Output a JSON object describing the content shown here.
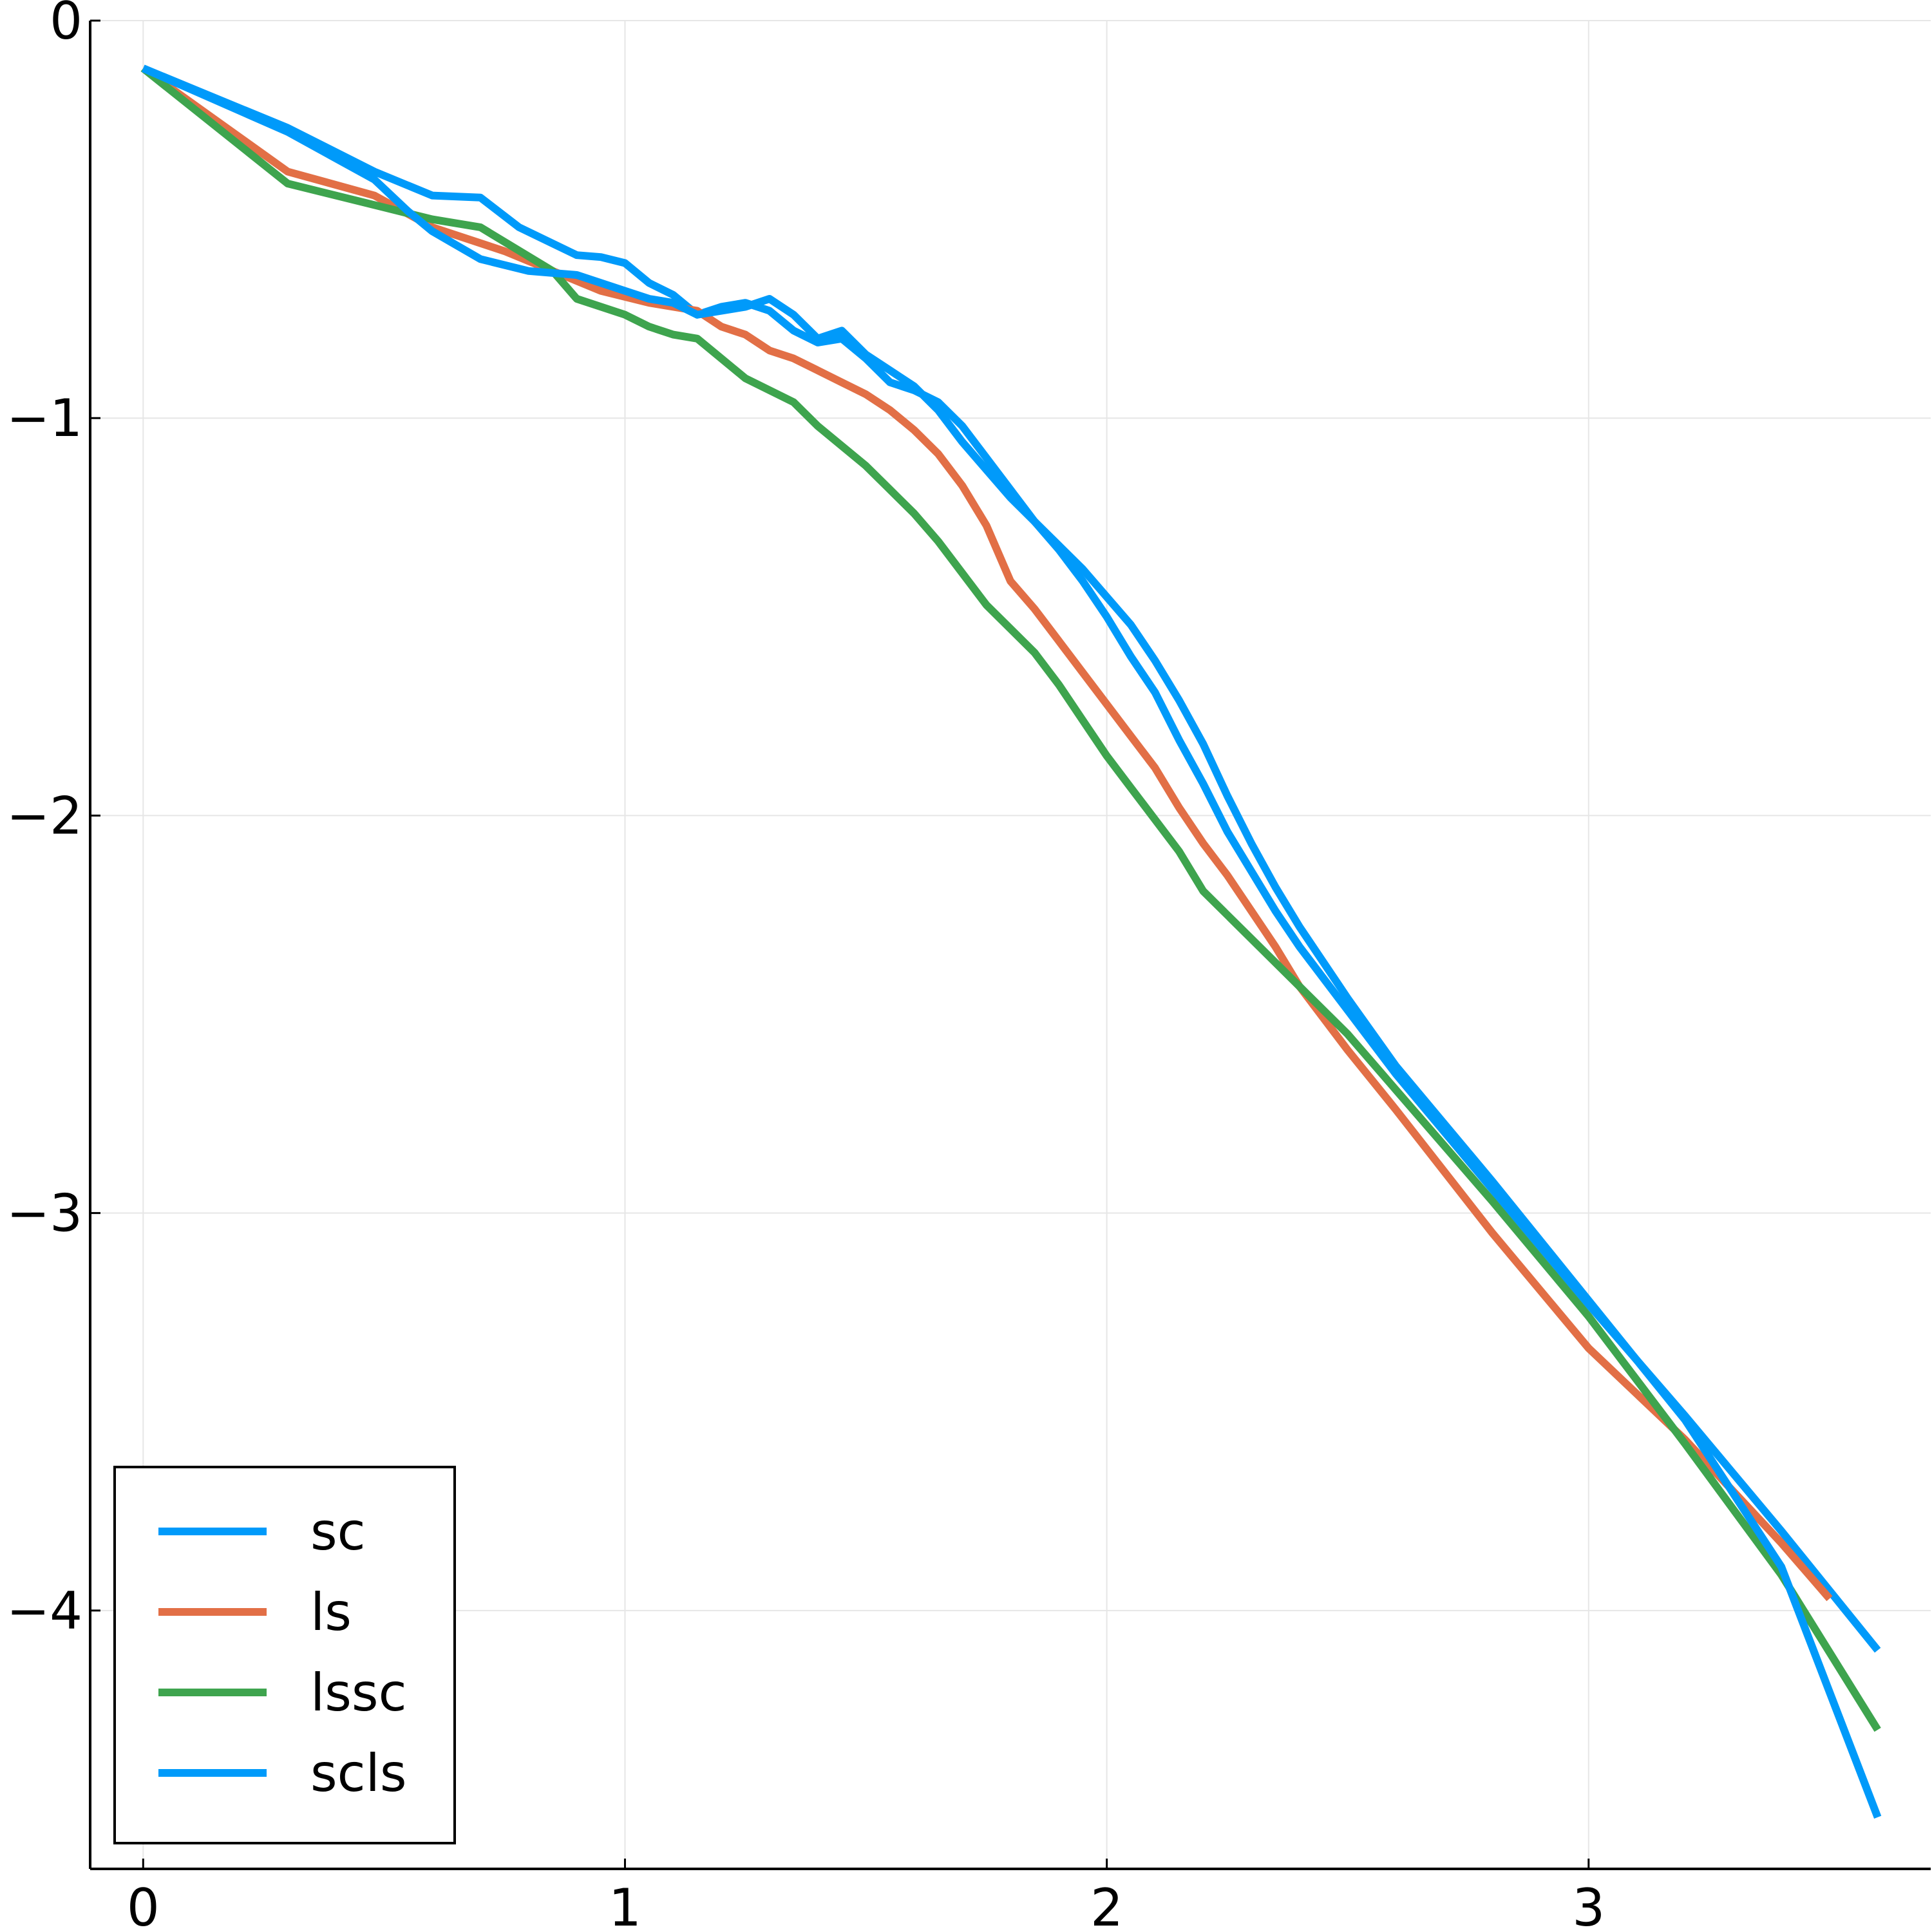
{
  "chart_data": {
    "type": "line",
    "title": "",
    "xlabel": "",
    "ylabel": "",
    "xlim": [
      -0.11,
      3.71
    ],
    "ylim": [
      -4.65,
      0.0
    ],
    "xticks": [
      {
        "value": 0,
        "label": "0"
      },
      {
        "value": 1,
        "label": "1"
      },
      {
        "value": 2,
        "label": "2"
      },
      {
        "value": 3,
        "label": "3"
      }
    ],
    "yticks": [
      {
        "value": 0,
        "label": "0"
      },
      {
        "value": -1,
        "label": "−1"
      },
      {
        "value": -2,
        "label": "−2"
      },
      {
        "value": -3,
        "label": "−3"
      },
      {
        "value": -4,
        "label": "−4"
      }
    ],
    "grid": true,
    "legend_position": "bottom-left",
    "series": [
      {
        "name": "sc",
        "color": "#009AFA",
        "points": [
          [
            0.0,
            -0.12
          ],
          [
            0.3,
            -0.27
          ],
          [
            0.48,
            -0.38
          ],
          [
            0.6,
            -0.44
          ],
          [
            0.7,
            -0.445
          ],
          [
            0.78,
            -0.52
          ],
          [
            0.9,
            -0.59
          ],
          [
            0.95,
            -0.595
          ],
          [
            1.0,
            -0.61
          ],
          [
            1.05,
            -0.66
          ],
          [
            1.1,
            -0.69
          ],
          [
            1.15,
            -0.74
          ],
          [
            1.2,
            -0.72
          ],
          [
            1.25,
            -0.71
          ],
          [
            1.3,
            -0.73
          ],
          [
            1.35,
            -0.78
          ],
          [
            1.4,
            -0.81
          ],
          [
            1.45,
            -0.8
          ],
          [
            1.5,
            -0.85
          ],
          [
            1.55,
            -0.91
          ],
          [
            1.6,
            -0.93
          ],
          [
            1.65,
            -0.96
          ],
          [
            1.7,
            -1.02
          ],
          [
            1.75,
            -1.1
          ],
          [
            1.8,
            -1.18
          ],
          [
            1.85,
            -1.26
          ],
          [
            1.9,
            -1.33
          ],
          [
            1.95,
            -1.41
          ],
          [
            2.0,
            -1.5
          ],
          [
            2.05,
            -1.6
          ],
          [
            2.1,
            -1.69
          ],
          [
            2.15,
            -1.81
          ],
          [
            2.2,
            -1.92
          ],
          [
            2.25,
            -2.04
          ],
          [
            2.3,
            -2.14
          ],
          [
            2.35,
            -2.24
          ],
          [
            2.4,
            -2.33
          ],
          [
            2.5,
            -2.49
          ],
          [
            2.6,
            -2.65
          ],
          [
            2.8,
            -2.94
          ],
          [
            3.0,
            -3.23
          ],
          [
            3.2,
            -3.51
          ],
          [
            3.4,
            -3.8
          ],
          [
            3.6,
            -4.1
          ]
        ]
      },
      {
        "name": "ls",
        "color": "#E26F46",
        "points": [
          [
            0.0,
            -0.12
          ],
          [
            0.3,
            -0.38
          ],
          [
            0.48,
            -0.44
          ],
          [
            0.6,
            -0.52
          ],
          [
            0.75,
            -0.58
          ],
          [
            0.85,
            -0.63
          ],
          [
            0.95,
            -0.68
          ],
          [
            1.05,
            -0.71
          ],
          [
            1.15,
            -0.73
          ],
          [
            1.2,
            -0.77
          ],
          [
            1.25,
            -0.79
          ],
          [
            1.3,
            -0.83
          ],
          [
            1.35,
            -0.85
          ],
          [
            1.4,
            -0.88
          ],
          [
            1.45,
            -0.91
          ],
          [
            1.5,
            -0.94
          ],
          [
            1.55,
            -0.98
          ],
          [
            1.6,
            -1.03
          ],
          [
            1.65,
            -1.09
          ],
          [
            1.7,
            -1.17
          ],
          [
            1.75,
            -1.27
          ],
          [
            1.8,
            -1.41
          ],
          [
            1.85,
            -1.48
          ],
          [
            1.9,
            -1.56
          ],
          [
            1.95,
            -1.64
          ],
          [
            2.0,
            -1.72
          ],
          [
            2.05,
            -1.8
          ],
          [
            2.1,
            -1.88
          ],
          [
            2.15,
            -1.98
          ],
          [
            2.2,
            -2.07
          ],
          [
            2.25,
            -2.15
          ],
          [
            2.3,
            -2.24
          ],
          [
            2.35,
            -2.33
          ],
          [
            2.4,
            -2.43
          ],
          [
            2.5,
            -2.59
          ],
          [
            2.6,
            -2.74
          ],
          [
            2.8,
            -3.05
          ],
          [
            3.0,
            -3.34
          ],
          [
            3.2,
            -3.57
          ],
          [
            3.4,
            -3.83
          ],
          [
            3.5,
            -3.97
          ]
        ]
      },
      {
        "name": "lssc",
        "color": "#3EA44E",
        "points": [
          [
            0.0,
            -0.12
          ],
          [
            0.3,
            -0.41
          ],
          [
            0.5,
            -0.47
          ],
          [
            0.6,
            -0.5
          ],
          [
            0.7,
            -0.52
          ],
          [
            0.85,
            -0.63
          ],
          [
            0.9,
            -0.7
          ],
          [
            1.0,
            -0.74
          ],
          [
            1.05,
            -0.77
          ],
          [
            1.1,
            -0.79
          ],
          [
            1.15,
            -0.8
          ],
          [
            1.2,
            -0.85
          ],
          [
            1.25,
            -0.9
          ],
          [
            1.3,
            -0.93
          ],
          [
            1.35,
            -0.96
          ],
          [
            1.4,
            -1.02
          ],
          [
            1.45,
            -1.07
          ],
          [
            1.5,
            -1.12
          ],
          [
            1.55,
            -1.18
          ],
          [
            1.6,
            -1.24
          ],
          [
            1.65,
            -1.31
          ],
          [
            1.7,
            -1.39
          ],
          [
            1.75,
            -1.47
          ],
          [
            1.8,
            -1.53
          ],
          [
            1.85,
            -1.59
          ],
          [
            1.9,
            -1.67
          ],
          [
            1.95,
            -1.76
          ],
          [
            2.0,
            -1.85
          ],
          [
            2.05,
            -1.93
          ],
          [
            2.1,
            -2.01
          ],
          [
            2.15,
            -2.09
          ],
          [
            2.2,
            -2.19
          ],
          [
            2.3,
            -2.31
          ],
          [
            2.4,
            -2.43
          ],
          [
            2.5,
            -2.55
          ],
          [
            2.6,
            -2.69
          ],
          [
            2.8,
            -2.97
          ],
          [
            3.0,
            -3.26
          ],
          [
            3.2,
            -3.58
          ],
          [
            3.4,
            -3.91
          ],
          [
            3.6,
            -4.3
          ]
        ]
      },
      {
        "name": "scls",
        "color": "#009AFA",
        "points": [
          [
            0.0,
            -0.12
          ],
          [
            0.3,
            -0.28
          ],
          [
            0.48,
            -0.4
          ],
          [
            0.55,
            -0.48
          ],
          [
            0.6,
            -0.53
          ],
          [
            0.7,
            -0.6
          ],
          [
            0.8,
            -0.63
          ],
          [
            0.9,
            -0.64
          ],
          [
            1.0,
            -0.68
          ],
          [
            1.05,
            -0.7
          ],
          [
            1.1,
            -0.71
          ],
          [
            1.15,
            -0.74
          ],
          [
            1.2,
            -0.73
          ],
          [
            1.25,
            -0.72
          ],
          [
            1.3,
            -0.7
          ],
          [
            1.35,
            -0.74
          ],
          [
            1.4,
            -0.8
          ],
          [
            1.45,
            -0.78
          ],
          [
            1.5,
            -0.84
          ],
          [
            1.55,
            -0.88
          ],
          [
            1.6,
            -0.92
          ],
          [
            1.65,
            -0.98
          ],
          [
            1.7,
            -1.06
          ],
          [
            1.75,
            -1.13
          ],
          [
            1.8,
            -1.2
          ],
          [
            1.85,
            -1.26
          ],
          [
            1.9,
            -1.32
          ],
          [
            1.95,
            -1.38
          ],
          [
            2.0,
            -1.45
          ],
          [
            2.05,
            -1.52
          ],
          [
            2.1,
            -1.61
          ],
          [
            2.15,
            -1.71
          ],
          [
            2.2,
            -1.82
          ],
          [
            2.25,
            -1.95
          ],
          [
            2.3,
            -2.07
          ],
          [
            2.35,
            -2.18
          ],
          [
            2.4,
            -2.28
          ],
          [
            2.5,
            -2.46
          ],
          [
            2.6,
            -2.63
          ],
          [
            2.8,
            -2.92
          ],
          [
            3.0,
            -3.22
          ],
          [
            3.2,
            -3.52
          ],
          [
            3.4,
            -3.89
          ],
          [
            3.6,
            -4.52
          ]
        ]
      }
    ]
  }
}
